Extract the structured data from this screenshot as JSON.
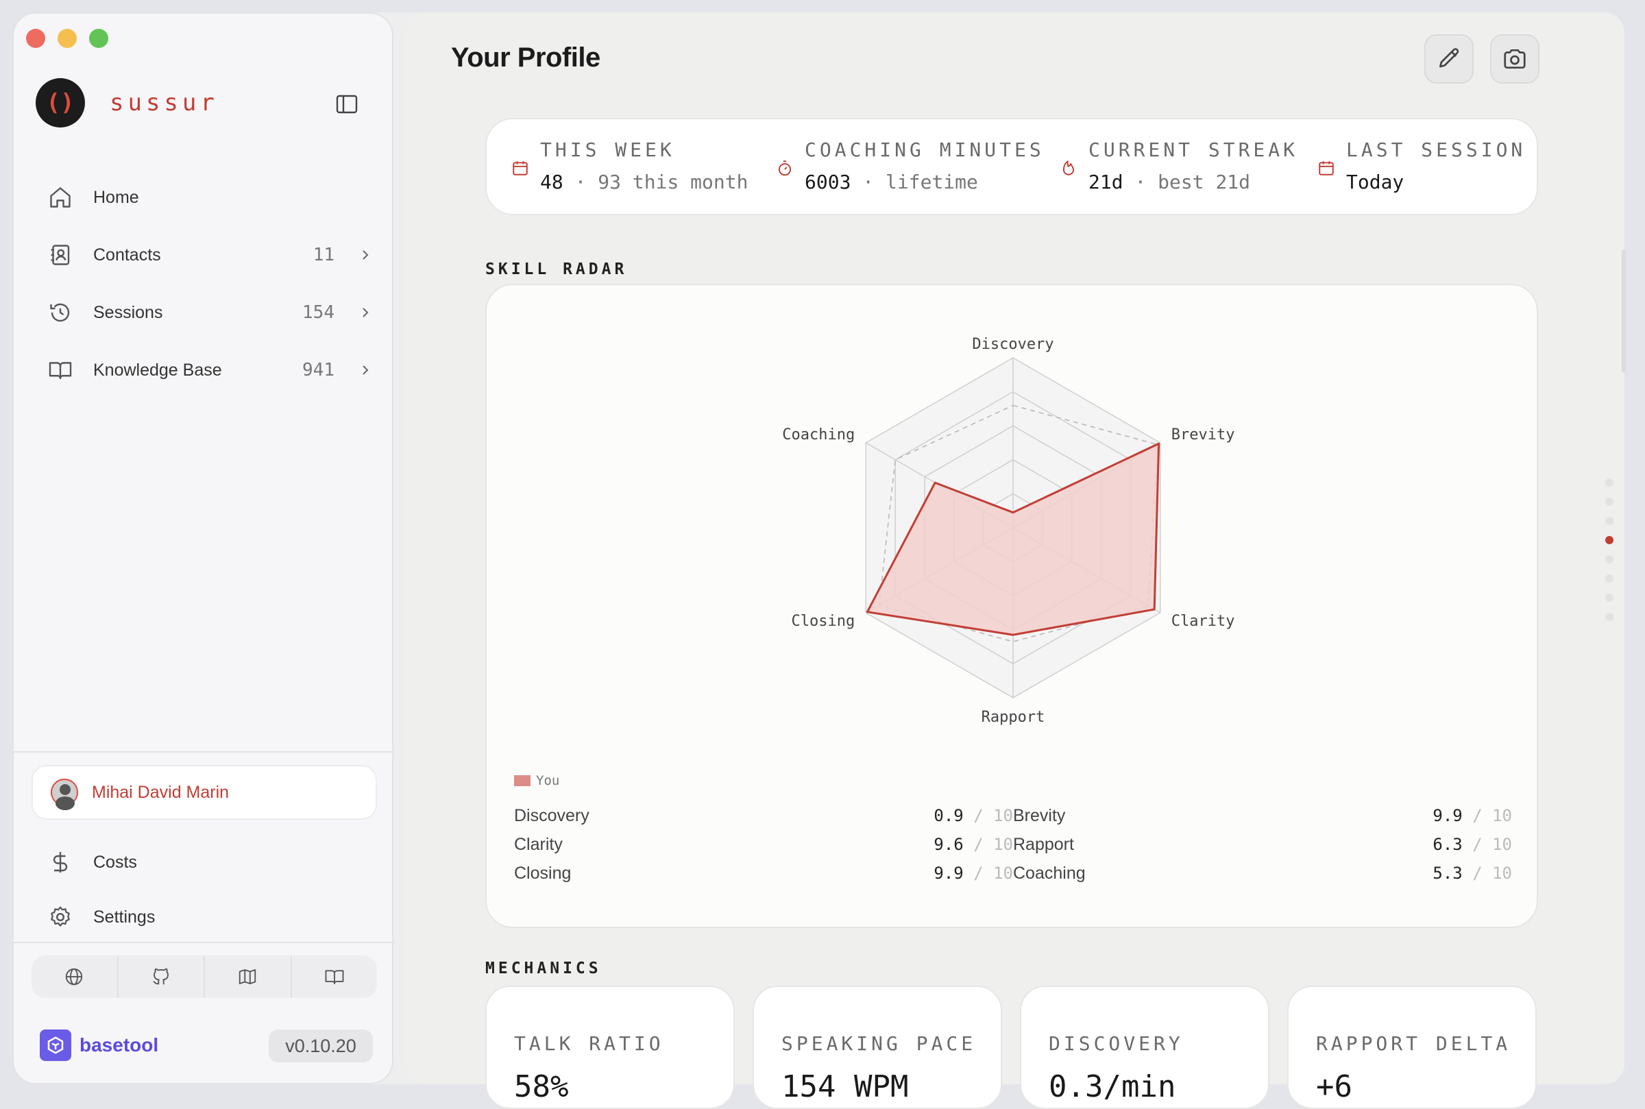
{
  "sidebar": {
    "brand": {
      "logo_glyph": "()",
      "name": "sussur"
    },
    "nav": [
      {
        "label": "Home",
        "count": "",
        "icon": "home-icon"
      },
      {
        "label": "Contacts",
        "count": "11",
        "icon": "contacts-icon"
      },
      {
        "label": "Sessions",
        "count": "154",
        "icon": "history-icon"
      },
      {
        "label": "Knowledge Base",
        "count": "941",
        "icon": "book-icon"
      }
    ],
    "user": {
      "name": "Mihai David Marin"
    },
    "links": {
      "costs": "Costs",
      "settings": "Settings"
    },
    "footer": {
      "brand": "basetool",
      "version": "v0.10.20"
    }
  },
  "main": {
    "title": "Your Profile",
    "stats": [
      {
        "label": "THIS WEEK",
        "value": "48",
        "sub": "· 93 this month"
      },
      {
        "label": "COACHING MINUTES",
        "value": "6003",
        "sub": "· lifetime"
      },
      {
        "label": "CURRENT STREAK",
        "value": "21d",
        "sub": "· best 21d"
      },
      {
        "label": "LAST SESSION",
        "value": "Today",
        "sub": ""
      }
    ],
    "radar_section_title": "SKILL RADAR",
    "mechanics_section_title": "MECHANICS",
    "mechanics": [
      {
        "label": "TALK RATIO",
        "value": "58%"
      },
      {
        "label": "SPEAKING PACE",
        "value": "154 WPM"
      },
      {
        "label": "DISCOVERY",
        "value": "0.3/min"
      },
      {
        "label": "RAPPORT DELTA",
        "value": "+6"
      }
    ],
    "score_denominator": "/ 10"
  },
  "colors": {
    "accent": "#c23d33",
    "radar_fill": "#f2cfcc",
    "radar_stroke": "#c23d33"
  },
  "chart_data": {
    "type": "radar",
    "axes": [
      "Discovery",
      "Brevity",
      "Clarity",
      "Rapport",
      "Closing",
      "Coaching"
    ],
    "range": [
      0,
      10
    ],
    "series": [
      {
        "name": "You",
        "values": [
          0.9,
          9.9,
          9.6,
          6.3,
          9.9,
          5.3
        ]
      }
    ],
    "reference_values": [
      7.2,
      9.8,
      9.2,
      6.7,
      9.1,
      8.0
    ],
    "legend": "bottom-left"
  }
}
